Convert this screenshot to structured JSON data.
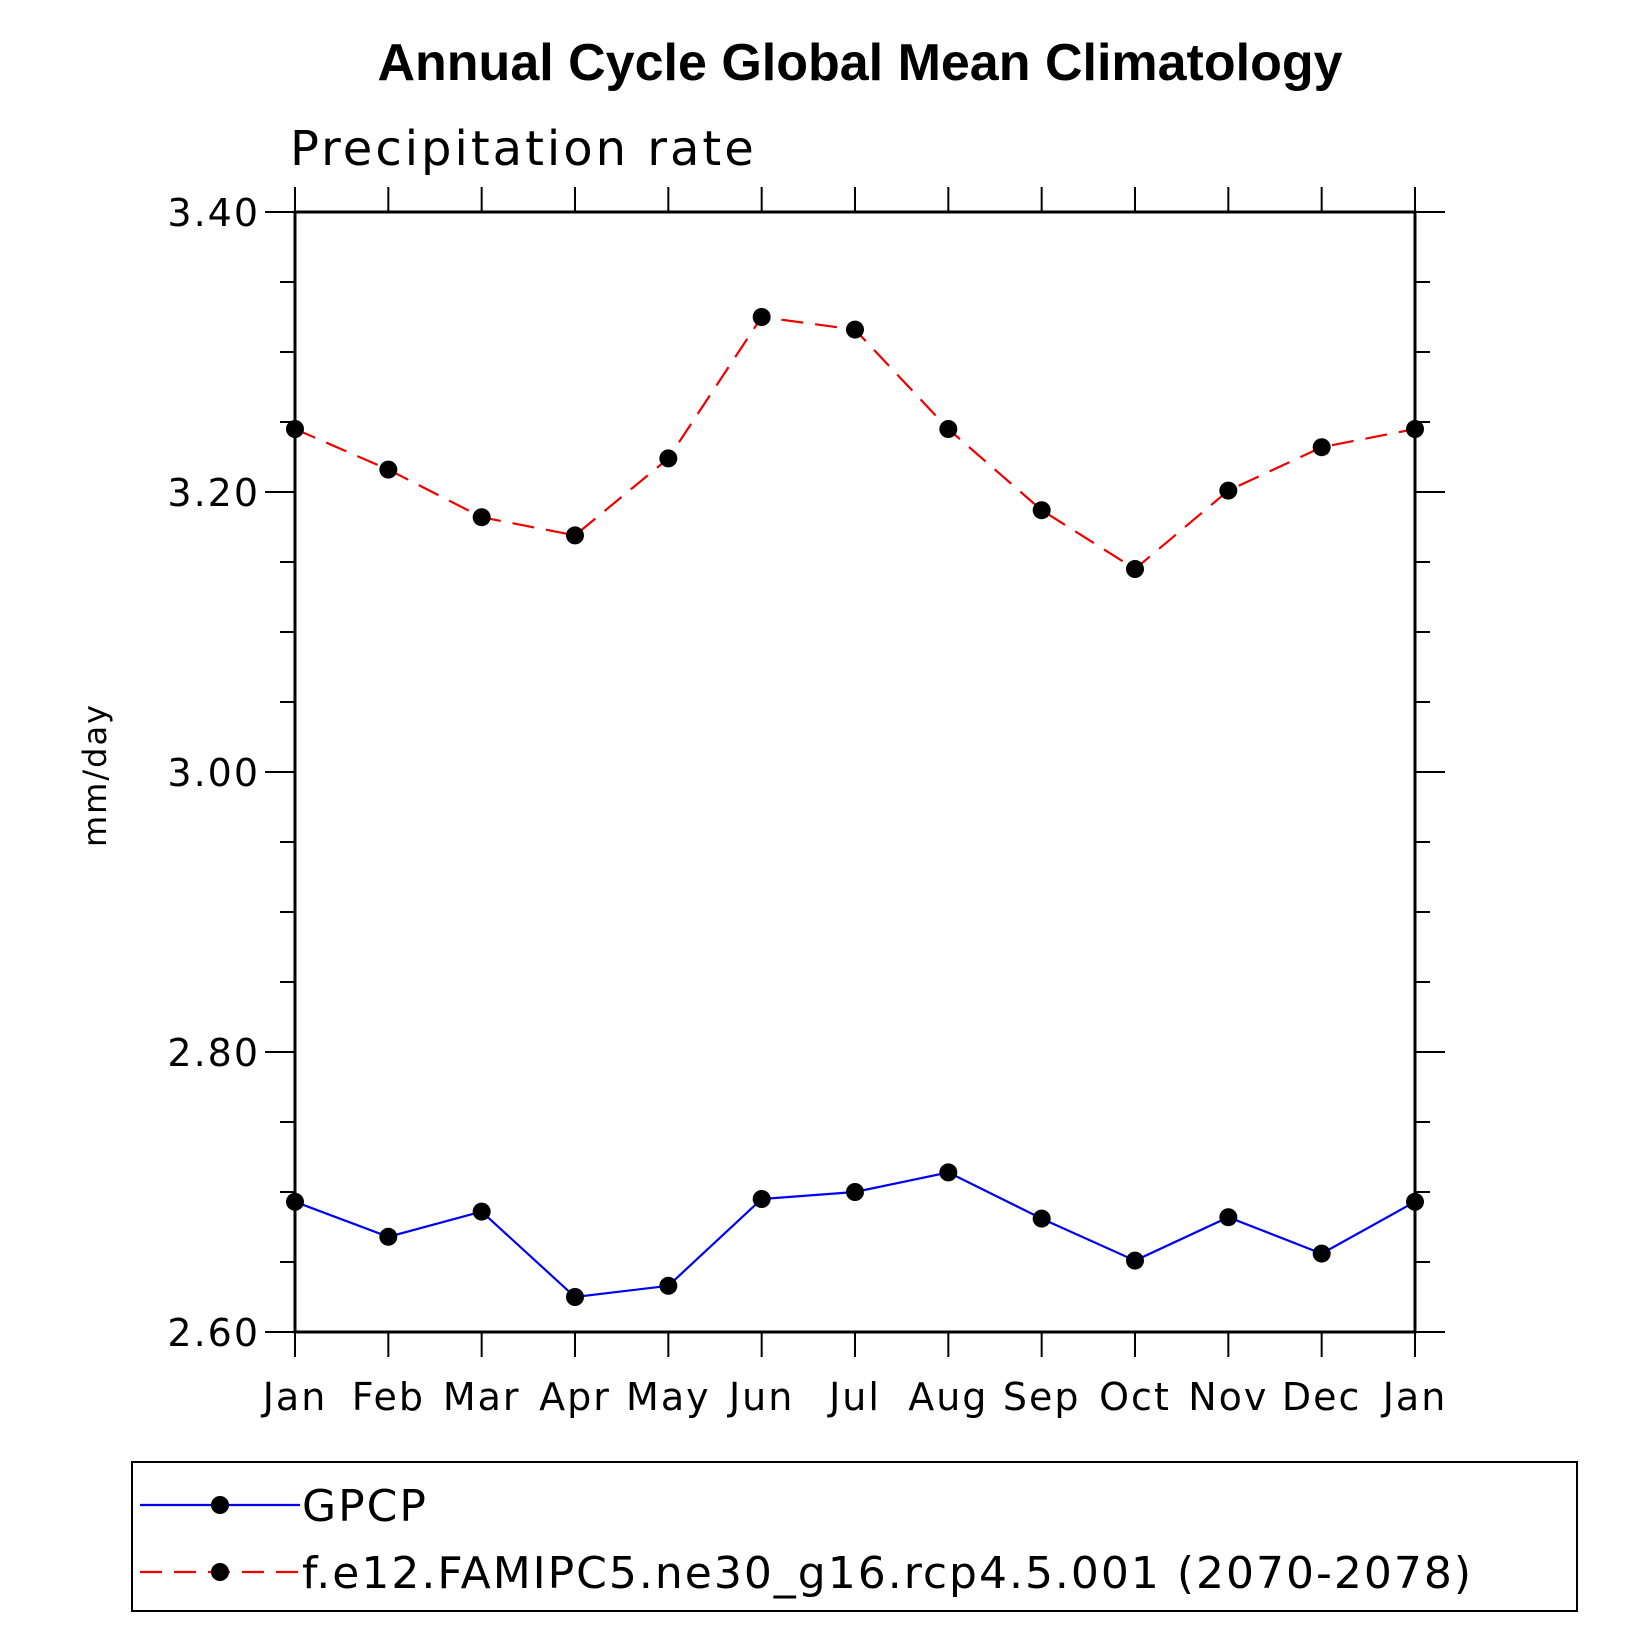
{
  "chart_data": {
    "type": "line",
    "title": "Annual Cycle Global Mean Climatology",
    "subtitle": "Precipitation rate",
    "xlabel": "",
    "ylabel": "mm/day",
    "categories": [
      "Jan",
      "Feb",
      "Mar",
      "Apr",
      "May",
      "Jun",
      "Jul",
      "Aug",
      "Sep",
      "Oct",
      "Nov",
      "Dec",
      "Jan"
    ],
    "ylim": [
      2.6,
      3.4
    ],
    "yticks": [
      "2.60",
      "2.80",
      "3.00",
      "3.20",
      "3.40"
    ],
    "y_major_step": 0.2,
    "y_minor_step": 0.05,
    "grid": false,
    "legend_position": "bottom",
    "series": [
      {
        "name": "GPCP",
        "color": "#0000ee",
        "dash": "solid",
        "marker": "filled-circle",
        "values": [
          2.693,
          2.668,
          2.686,
          2.625,
          2.633,
          2.695,
          2.7,
          2.714,
          2.681,
          2.651,
          2.682,
          2.656,
          2.693
        ]
      },
      {
        "name": "f.e12.FAMIPC5.ne30_g16.rcp4.5.001 (2070-2078)",
        "color": "#ee0000",
        "dash": "dashed",
        "marker": "filled-circle",
        "values": [
          3.245,
          3.216,
          3.182,
          3.169,
          3.224,
          3.325,
          3.316,
          3.245,
          3.187,
          3.145,
          3.201,
          3.232,
          3.245
        ]
      }
    ]
  }
}
